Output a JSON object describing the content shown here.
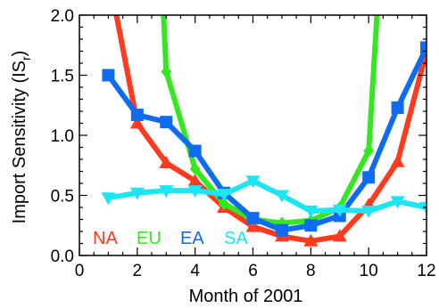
{
  "chart_data": {
    "type": "line",
    "xlabel": "Month of 2001",
    "ylabel_main": "Import Sensitivity (IS",
    "ylabel_sub": "r",
    "ylabel_close": ")",
    "xlim": [
      0,
      12
    ],
    "ylim": [
      0,
      2.0
    ],
    "xticks": [
      0,
      2,
      4,
      6,
      8,
      10,
      12
    ],
    "xtick_labels": [
      "0",
      "2",
      "4",
      "6",
      "8",
      "10",
      "12"
    ],
    "yticks": [
      0.0,
      0.5,
      1.0,
      1.5,
      2.0
    ],
    "ytick_labels": [
      "0.0",
      "0.5",
      "1.0",
      "1.5",
      "2.0"
    ],
    "grid": false,
    "legend_placement": "bottom-left",
    "series": [
      {
        "name": "NA",
        "color": "#ff3b1f",
        "marker": "triangle-up",
        "x": [
          1,
          2,
          3,
          4,
          5,
          6,
          7,
          8,
          9,
          10,
          11,
          12
        ],
        "y": [
          2.35,
          1.1,
          0.77,
          0.62,
          0.4,
          0.24,
          0.16,
          0.12,
          0.16,
          0.42,
          0.78,
          1.7
        ]
      },
      {
        "name": "EU",
        "color": "#33e81f",
        "marker": "diamond",
        "x": [
          2.9,
          3,
          4,
          5,
          6,
          7,
          8,
          9,
          10,
          10.3
        ],
        "y": [
          2.05,
          1.53,
          0.72,
          0.43,
          0.3,
          0.27,
          0.29,
          0.4,
          0.87,
          2.05
        ]
      },
      {
        "name": "EA",
        "color": "#0f6cf0",
        "marker": "square",
        "x": [
          1,
          2,
          3,
          4,
          5,
          6,
          7,
          8,
          9,
          10,
          11,
          12
        ],
        "y": [
          1.5,
          1.17,
          1.11,
          0.87,
          0.52,
          0.31,
          0.21,
          0.25,
          0.33,
          0.65,
          1.23,
          1.73
        ]
      },
      {
        "name": "SA",
        "color": "#1de5f2",
        "marker": "triangle-down",
        "x": [
          1,
          2,
          3,
          4,
          5,
          6,
          7,
          8,
          9,
          10,
          11,
          12
        ],
        "y": [
          0.48,
          0.52,
          0.54,
          0.54,
          0.51,
          0.62,
          0.5,
          0.37,
          0.38,
          0.37,
          0.45,
          0.4
        ]
      }
    ]
  }
}
